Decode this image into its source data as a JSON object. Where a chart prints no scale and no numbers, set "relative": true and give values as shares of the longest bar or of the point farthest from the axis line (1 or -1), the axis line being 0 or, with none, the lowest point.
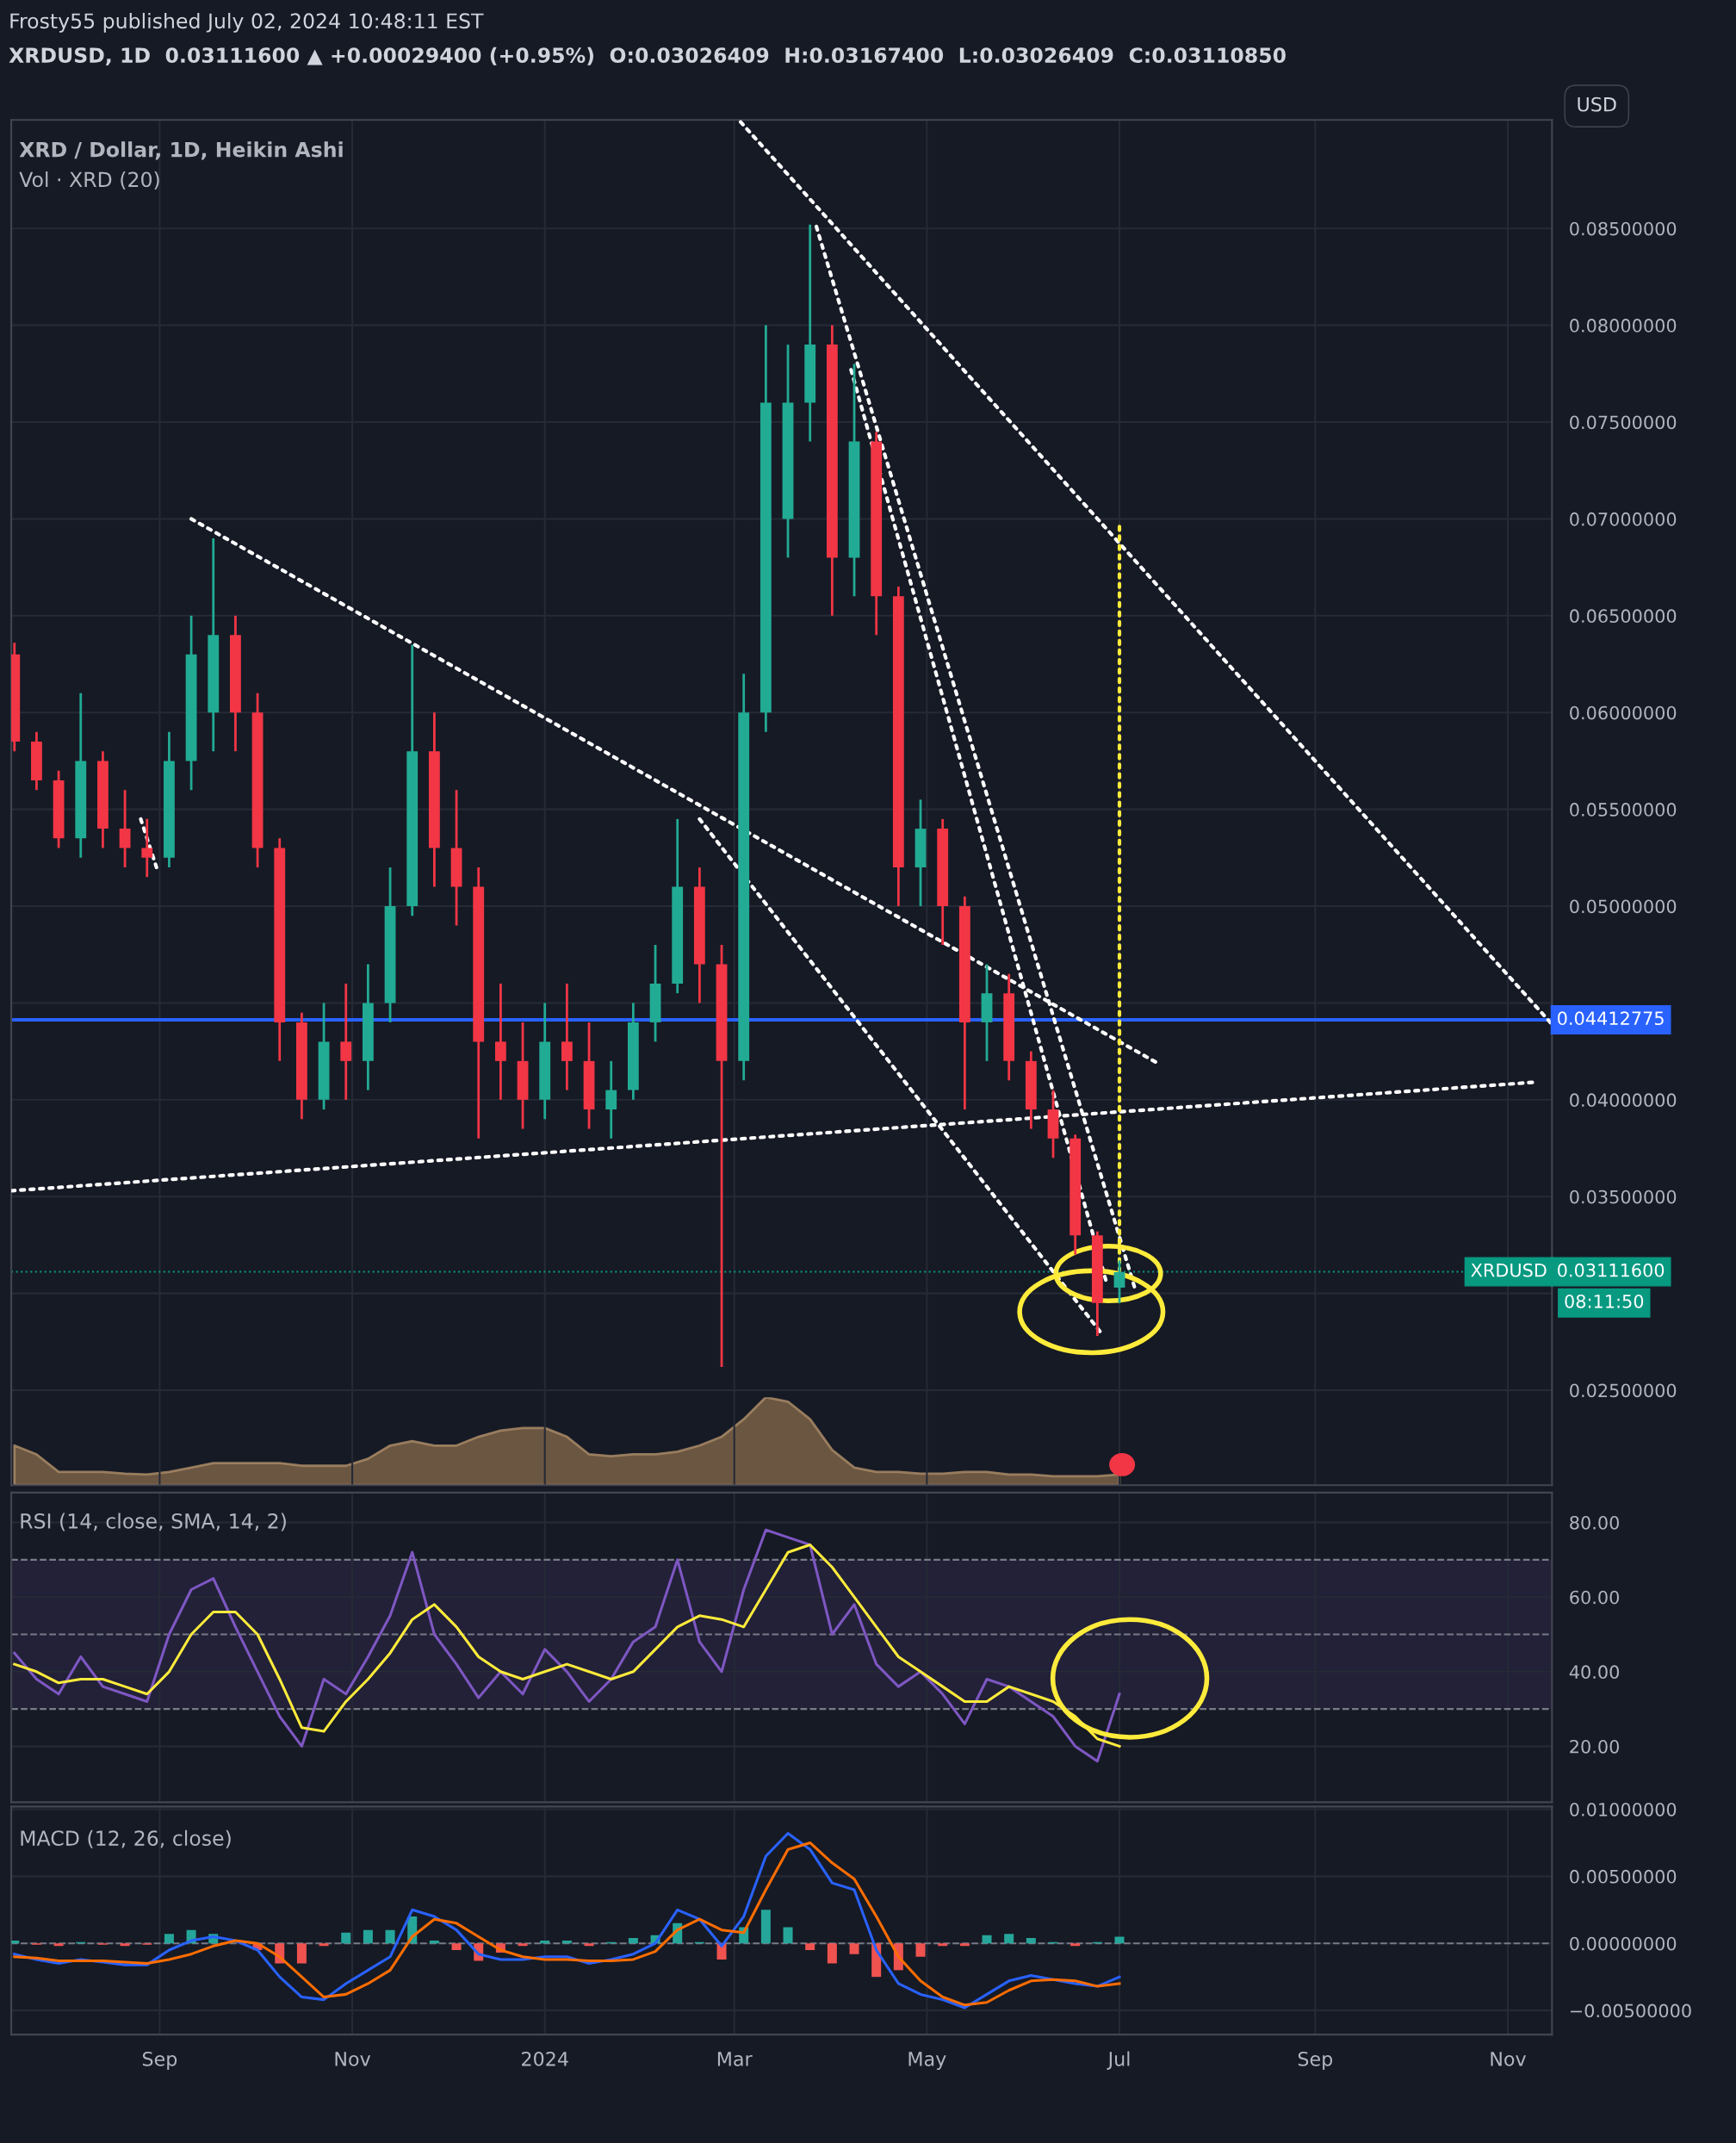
{
  "chart_data": [
    {
      "type": "candlestick",
      "title": "XRD / Dollar, 1D, Heikin Ashi",
      "annotations": [
        "Frosty55 published July 02, 2024 10:48:11 EST",
        "XRDUSD, 1D  0.03111600 ▲ +0.00029400 (+0.95%)  O:0.03026409  H:0.03167400  L:0.03026409  C:0.03110850",
        "USD",
        "XRDUSD",
        "08:11:50"
      ],
      "x": [
        "2023-07-17",
        "2023-07-24",
        "2023-07-31",
        "2023-08-07",
        "2023-08-14",
        "2023-08-21",
        "2023-08-28",
        "2023-09-04",
        "2023-09-11",
        "2023-09-18",
        "2023-09-25",
        "2023-10-02",
        "2023-10-09",
        "2023-10-16",
        "2023-10-23",
        "2023-10-30",
        "2023-11-06",
        "2023-11-13",
        "2023-11-20",
        "2023-11-27",
        "2023-12-04",
        "2023-12-11",
        "2023-12-18",
        "2023-12-25",
        "2024-01-01",
        "2024-01-08",
        "2024-01-15",
        "2024-01-22",
        "2024-01-29",
        "2024-02-05",
        "2024-02-12",
        "2024-02-19",
        "2024-02-26",
        "2024-03-04",
        "2024-03-11",
        "2024-03-18",
        "2024-03-25",
        "2024-04-01",
        "2024-04-08",
        "2024-04-15",
        "2024-04-22",
        "2024-04-29",
        "2024-05-06",
        "2024-05-13",
        "2024-05-20",
        "2024-05-27",
        "2024-06-03",
        "2024-06-10",
        "2024-06-17",
        "2024-06-24",
        "2024-07-01"
      ],
      "ohlc": [
        [
          0.063,
          0.0636,
          0.058,
          0.0585
        ],
        [
          0.0585,
          0.059,
          0.056,
          0.0565
        ],
        [
          0.0565,
          0.057,
          0.053,
          0.0535
        ],
        [
          0.0535,
          0.061,
          0.0525,
          0.0575
        ],
        [
          0.0575,
          0.058,
          0.053,
          0.054
        ],
        [
          0.054,
          0.056,
          0.052,
          0.053
        ],
        [
          0.053,
          0.0545,
          0.0515,
          0.0525
        ],
        [
          0.0525,
          0.059,
          0.052,
          0.0575
        ],
        [
          0.0575,
          0.065,
          0.056,
          0.063
        ],
        [
          0.06,
          0.069,
          0.058,
          0.064
        ],
        [
          0.064,
          0.065,
          0.058,
          0.06
        ],
        [
          0.06,
          0.061,
          0.052,
          0.053
        ],
        [
          0.053,
          0.0535,
          0.042,
          0.044
        ],
        [
          0.044,
          0.0445,
          0.039,
          0.04
        ],
        [
          0.04,
          0.045,
          0.0395,
          0.043
        ],
        [
          0.043,
          0.046,
          0.04,
          0.042
        ],
        [
          0.042,
          0.047,
          0.0405,
          0.045
        ],
        [
          0.045,
          0.052,
          0.044,
          0.05
        ],
        [
          0.05,
          0.0635,
          0.0495,
          0.058
        ],
        [
          0.058,
          0.06,
          0.051,
          0.053
        ],
        [
          0.053,
          0.056,
          0.049,
          0.051
        ],
        [
          0.051,
          0.052,
          0.038,
          0.043
        ],
        [
          0.043,
          0.046,
          0.04,
          0.042
        ],
        [
          0.042,
          0.044,
          0.0385,
          0.04
        ],
        [
          0.04,
          0.045,
          0.039,
          0.043
        ],
        [
          0.043,
          0.046,
          0.0405,
          0.042
        ],
        [
          0.042,
          0.044,
          0.0385,
          0.0395
        ],
        [
          0.0395,
          0.042,
          0.038,
          0.0405
        ],
        [
          0.0405,
          0.045,
          0.04,
          0.044
        ],
        [
          0.044,
          0.048,
          0.043,
          0.046
        ],
        [
          0.046,
          0.0545,
          0.0455,
          0.051
        ],
        [
          0.051,
          0.052,
          0.045,
          0.047
        ],
        [
          0.047,
          0.048,
          0.0262,
          0.042
        ],
        [
          0.042,
          0.062,
          0.041,
          0.06
        ],
        [
          0.06,
          0.08,
          0.059,
          0.076
        ],
        [
          0.07,
          0.079,
          0.068,
          0.076
        ],
        [
          0.076,
          0.0852,
          0.074,
          0.079
        ],
        [
          0.079,
          0.08,
          0.065,
          0.068
        ],
        [
          0.068,
          0.078,
          0.066,
          0.074
        ],
        [
          0.074,
          0.0745,
          0.064,
          0.066
        ],
        [
          0.066,
          0.0665,
          0.05,
          0.052
        ],
        [
          0.052,
          0.0555,
          0.05,
          0.054
        ],
        [
          0.054,
          0.0545,
          0.048,
          0.05
        ],
        [
          0.05,
          0.0505,
          0.0395,
          0.044
        ],
        [
          0.044,
          0.047,
          0.042,
          0.0455
        ],
        [
          0.0455,
          0.0465,
          0.041,
          0.042
        ],
        [
          0.042,
          0.0425,
          0.0385,
          0.0395
        ],
        [
          0.0395,
          0.0405,
          0.037,
          0.038
        ],
        [
          0.038,
          0.0382,
          0.032,
          0.033
        ],
        [
          0.033,
          0.0332,
          0.0278,
          0.0295
        ],
        [
          0.0303,
          0.0317,
          0.0295,
          0.0311
        ]
      ],
      "colors": [
        "#f23645",
        "#f23645",
        "#f23645",
        "#22ab94",
        "#f23645",
        "#f23645",
        "#f23645",
        "#22ab94",
        "#22ab94",
        "#22ab94",
        "#f23645",
        "#f23645",
        "#f23645",
        "#f23645",
        "#22ab94",
        "#f23645",
        "#22ab94",
        "#22ab94",
        "#22ab94",
        "#f23645",
        "#f23645",
        "#f23645",
        "#f23645",
        "#f23645",
        "#22ab94",
        "#f23645",
        "#f23645",
        "#22ab94",
        "#22ab94",
        "#22ab94",
        "#22ab94",
        "#f23645",
        "#f23645",
        "#22ab94",
        "#22ab94",
        "#22ab94",
        "#22ab94",
        "#f23645",
        "#22ab94",
        "#f23645",
        "#f23645",
        "#22ab94",
        "#f23645",
        "#f23645",
        "#22ab94",
        "#f23645",
        "#f23645",
        "#f23645",
        "#f23645",
        "#f23645",
        "#22ab94"
      ],
      "series": [
        {
          "type": "line",
          "x": [
            "2023-09-11",
            "2024-07-13"
          ],
          "values": [
            0.07,
            0.0419
          ],
          "color": "#ffffff",
          "line_style": "dotted"
        },
        {
          "type": "line",
          "x": [
            "2023-07-16",
            "2024-11-09"
          ],
          "values": [
            0.0353,
            0.0409
          ],
          "color": "#ffffff",
          "line_style": "dotted"
        },
        {
          "type": "line",
          "x": [
            "2024-03-03",
            "2024-11-15"
          ],
          "values": [
            0.0905,
            0.0439
          ],
          "color": "#ffffff",
          "line_style": "dotted"
        },
        {
          "type": "line",
          "x": [
            "2024-02-19",
            "2024-06-25"
          ],
          "values": [
            0.0545,
            0.028
          ],
          "color": "#ffffff",
          "line_style": "dotted"
        },
        {
          "type": "line",
          "x": [
            "2024-03-27",
            "2024-07-06"
          ],
          "values": [
            0.0851,
            0.0302
          ],
          "color": "#ffffff",
          "line_style": "dotted"
        },
        {
          "type": "line",
          "x": [
            "2024-04-07",
            "2024-06-27"
          ],
          "values": [
            0.0777,
            0.0305
          ],
          "color": "#ffffff",
          "line_style": "dotted"
        },
        {
          "type": "line",
          "x": [
            "2023-08-26",
            "2023-08-31"
          ],
          "values": [
            0.0545,
            0.052
          ],
          "color": "#ffffff",
          "line_style": "dotted"
        },
        {
          "type": "line",
          "x": [
            "2024-07-01",
            "2024-07-01"
          ],
          "values": [
            0.0696,
            0.0312
          ],
          "color": "#ffeb3b",
          "line_style": "dotted"
        }
      ],
      "ref_lines": [
        {
          "axis": "y",
          "value": 0.04412775,
          "label": "0.04412775",
          "color": "#2962ff",
          "line_style": "solid"
        },
        {
          "axis": "y",
          "value": 0.031116,
          "label": "0.03111600",
          "color": "#089981",
          "line_style": "dotted"
        }
      ],
      "xlim": [
        "2023-07-16",
        "2024-11-15"
      ],
      "ylim": [
        0.0201,
        0.0906
      ],
      "xticks": [
        {
          "value": "2023-09-01",
          "label": null
        },
        {
          "value": "2023-11-01",
          "label": null
        },
        {
          "value": "2024-01-01",
          "label": null
        },
        {
          "value": "2024-03-01",
          "label": null
        },
        {
          "value": "2024-05-01",
          "label": null
        },
        {
          "value": "2024-07-01",
          "label": null
        },
        {
          "value": "2024-09-01",
          "label": null
        },
        {
          "value": "2024-11-01",
          "label": null
        }
      ],
      "yticks": [
        {
          "value": 0.025,
          "label": "0.02500000"
        },
        {
          "value": 0.03,
          "label": null
        },
        {
          "value": 0.035,
          "label": "0.03500000"
        },
        {
          "value": 0.04,
          "label": "0.04000000"
        },
        {
          "value": 0.045,
          "label": null
        },
        {
          "value": 0.05,
          "label": "0.05000000"
        },
        {
          "value": 0.055,
          "label": "0.05500000"
        },
        {
          "value": 0.06,
          "label": "0.06000000"
        },
        {
          "value": 0.065,
          "label": "0.06500000"
        },
        {
          "value": 0.07,
          "label": "0.07000000"
        },
        {
          "value": 0.075,
          "label": "0.07500000"
        },
        {
          "value": 0.08,
          "label": "0.08000000"
        },
        {
          "value": 0.085,
          "label": "0.08500000"
        }
      ],
      "grid": true,
      "tick_labels": "y"
    },
    {
      "type": "area",
      "title": "Vol · XRD (20)",
      "relative": true,
      "tick_labels": false,
      "x": [
        "2023-07-17",
        "2023-07-24",
        "2023-07-31",
        "2023-08-07",
        "2023-08-14",
        "2023-08-21",
        "2023-08-28",
        "2023-09-04",
        "2023-09-11",
        "2023-09-18",
        "2023-09-25",
        "2023-10-02",
        "2023-10-09",
        "2023-10-16",
        "2023-10-23",
        "2023-10-30",
        "2023-11-06",
        "2023-11-13",
        "2023-11-20",
        "2023-11-27",
        "2023-12-04",
        "2023-12-11",
        "2023-12-18",
        "2023-12-25",
        "2024-01-01",
        "2024-01-08",
        "2024-01-15",
        "2024-01-22",
        "2024-01-29",
        "2024-02-05",
        "2024-02-12",
        "2024-02-19",
        "2024-02-26",
        "2024-03-04",
        "2024-03-11",
        "2024-03-18",
        "2024-03-25",
        "2024-04-01",
        "2024-04-08",
        "2024-04-15",
        "2024-04-22",
        "2024-04-29",
        "2024-05-06",
        "2024-05-13",
        "2024-05-20",
        "2024-05-27",
        "2024-06-03",
        "2024-06-10",
        "2024-06-17",
        "2024-06-24",
        "2024-07-01"
      ],
      "series": [
        {
          "color": "#7a6248",
          "values": [
            0.45,
            0.35,
            0.15,
            0.15,
            0.15,
            0.13,
            0.12,
            0.15,
            0.2,
            0.25,
            0.25,
            0.25,
            0.25,
            0.22,
            0.22,
            0.22,
            0.3,
            0.45,
            0.5,
            0.45,
            0.45,
            0.55,
            0.62,
            0.65,
            0.65,
            0.55,
            0.35,
            0.33,
            0.35,
            0.35,
            0.38,
            0.45,
            0.55,
            0.75,
            1.0,
            0.95,
            0.75,
            0.4,
            0.2,
            0.15,
            0.15,
            0.13,
            0.13,
            0.15,
            0.15,
            0.12,
            0.12,
            0.1,
            0.1,
            0.1,
            0.12
          ]
        }
      ],
      "xlim": [
        "2023-07-16",
        "2024-11-15"
      ]
    },
    {
      "type": "line",
      "title": "RSI (14, close, SMA, 14, 2)",
      "x": [
        "2023-07-17",
        "2023-07-24",
        "2023-07-31",
        "2023-08-07",
        "2023-08-14",
        "2023-08-21",
        "2023-08-28",
        "2023-09-04",
        "2023-09-11",
        "2023-09-18",
        "2023-09-25",
        "2023-10-02",
        "2023-10-09",
        "2023-10-16",
        "2023-10-23",
        "2023-10-30",
        "2023-11-06",
        "2023-11-13",
        "2023-11-20",
        "2023-11-27",
        "2023-12-04",
        "2023-12-11",
        "2023-12-18",
        "2023-12-25",
        "2024-01-01",
        "2024-01-08",
        "2024-01-15",
        "2024-01-22",
        "2024-01-29",
        "2024-02-05",
        "2024-02-12",
        "2024-02-19",
        "2024-02-26",
        "2024-03-04",
        "2024-03-11",
        "2024-03-18",
        "2024-03-25",
        "2024-04-01",
        "2024-04-08",
        "2024-04-15",
        "2024-04-22",
        "2024-04-29",
        "2024-05-06",
        "2024-05-13",
        "2024-05-20",
        "2024-05-27",
        "2024-06-03",
        "2024-06-10",
        "2024-06-17",
        "2024-06-24",
        "2024-07-01"
      ],
      "series": [
        {
          "color": "#7e57c2",
          "values": [
            45,
            38,
            34,
            44,
            36,
            34,
            32,
            50,
            62,
            65,
            52,
            40,
            28,
            20,
            38,
            34,
            44,
            55,
            72,
            50,
            42,
            33,
            40,
            34,
            46,
            40,
            32,
            38,
            48,
            52,
            70,
            48,
            40,
            62,
            78,
            76,
            74,
            50,
            58,
            42,
            36,
            40,
            34,
            26,
            38,
            36,
            32,
            28,
            20,
            16,
            34
          ]
        },
        {
          "color": "#ffeb3b",
          "values": [
            42,
            40,
            37,
            38,
            38,
            36,
            34,
            40,
            50,
            56,
            56,
            50,
            38,
            25,
            24,
            32,
            38,
            45,
            54,
            58,
            52,
            44,
            40,
            38,
            40,
            42,
            40,
            38,
            40,
            46,
            52,
            55,
            54,
            52,
            62,
            72,
            74,
            68,
            60,
            52,
            44,
            40,
            36,
            32,
            32,
            36,
            34,
            32,
            28,
            22,
            20
          ]
        }
      ],
      "ref_lines": [
        {
          "axis": "y",
          "value": 70,
          "color": "#787b86",
          "line_style": "dashed"
        },
        {
          "axis": "y",
          "value": 50,
          "color": "#787b86",
          "line_style": "dashed"
        },
        {
          "axis": "y",
          "value": 30,
          "color": "#787b86",
          "line_style": "dashed"
        }
      ],
      "bands": [
        {
          "axis": "y",
          "from": 30,
          "to": 70,
          "color": "#7e57c2"
        }
      ],
      "xlim": [
        "2023-07-16",
        "2024-11-15"
      ],
      "ylim": [
        5,
        88
      ],
      "xticks": [
        {
          "value": "2023-09-01",
          "label": null
        },
        {
          "value": "2023-11-01",
          "label": null
        },
        {
          "value": "2024-01-01",
          "label": null
        },
        {
          "value": "2024-03-01",
          "label": null
        },
        {
          "value": "2024-05-01",
          "label": null
        },
        {
          "value": "2024-07-01",
          "label": null
        },
        {
          "value": "2024-09-01",
          "label": null
        },
        {
          "value": "2024-11-01",
          "label": null
        }
      ],
      "yticks": [
        {
          "value": 20,
          "label": "20.00"
        },
        {
          "value": 40,
          "label": "40.00"
        },
        {
          "value": 60,
          "label": "60.00"
        },
        {
          "value": 80,
          "label": "80.00"
        }
      ],
      "grid": true,
      "tick_labels": "y"
    },
    {
      "type": "line",
      "title": "MACD (12, 26, close)",
      "x": [
        "2023-07-17",
        "2023-07-24",
        "2023-07-31",
        "2023-08-07",
        "2023-08-14",
        "2023-08-21",
        "2023-08-28",
        "2023-09-04",
        "2023-09-11",
        "2023-09-18",
        "2023-09-25",
        "2023-10-02",
        "2023-10-09",
        "2023-10-16",
        "2023-10-23",
        "2023-10-30",
        "2023-11-06",
        "2023-11-13",
        "2023-11-20",
        "2023-11-27",
        "2023-12-04",
        "2023-12-11",
        "2023-12-18",
        "2023-12-25",
        "2024-01-01",
        "2024-01-08",
        "2024-01-15",
        "2024-01-22",
        "2024-01-29",
        "2024-02-05",
        "2024-02-12",
        "2024-02-19",
        "2024-02-26",
        "2024-03-04",
        "2024-03-11",
        "2024-03-18",
        "2024-03-25",
        "2024-04-01",
        "2024-04-08",
        "2024-04-15",
        "2024-04-22",
        "2024-04-29",
        "2024-05-06",
        "2024-05-13",
        "2024-05-20",
        "2024-05-27",
        "2024-06-03",
        "2024-06-10",
        "2024-06-17",
        "2024-06-24",
        "2024-07-01"
      ],
      "series": [
        {
          "type": "bar",
          "values": [
            0.0002,
            -0.0001,
            -0.0002,
            0.0001,
            -0.0001,
            -0.0002,
            -0.0001,
            0.0007,
            0.001,
            0.0007,
            null,
            -0.0005,
            -0.0015,
            -0.0015,
            -0.0002,
            0.0008,
            0.001,
            0.001,
            0.002,
            0.0002,
            -0.0005,
            -0.0013,
            -0.0007,
            -0.0002,
            0.0002,
            0.0002,
            -0.0002,
            0.0001,
            0.0004,
            0.0006,
            0.0015,
            0.0001,
            -0.0012,
            0.0012,
            0.0025,
            0.0012,
            -0.0005,
            -0.0015,
            -0.0008,
            -0.0025,
            -0.002,
            -0.001,
            -0.0002,
            -0.0002,
            0.0006,
            0.0007,
            0.0004,
            0.0001,
            -0.0002,
            0.0001,
            0.0005
          ],
          "colors": [
            "#26a69a",
            "#ef5350",
            "#ef5350",
            "#26a69a",
            "#ef5350",
            "#ef5350",
            "#ef5350",
            "#26a69a",
            "#26a69a",
            "#26a69a",
            "#26a69a",
            "#ef5350",
            "#ef5350",
            "#ef5350",
            "#ef5350",
            "#26a69a",
            "#26a69a",
            "#26a69a",
            "#26a69a",
            "#26a69a",
            "#ef5350",
            "#ef5350",
            "#ef5350",
            "#ef5350",
            "#26a69a",
            "#26a69a",
            "#ef5350",
            "#26a69a",
            "#26a69a",
            "#26a69a",
            "#26a69a",
            "#26a69a",
            "#ef5350",
            "#26a69a",
            "#26a69a",
            "#26a69a",
            "#ef5350",
            "#ef5350",
            "#ef5350",
            "#ef5350",
            "#ef5350",
            "#ef5350",
            "#ef5350",
            "#ef5350",
            "#26a69a",
            "#26a69a",
            "#26a69a",
            "#26a69a",
            "#ef5350",
            "#26a69a",
            "#26a69a"
          ]
        },
        {
          "color": "#2962ff",
          "values": [
            -0.0008,
            -0.0012,
            -0.0015,
            -0.0012,
            -0.0014,
            -0.0016,
            -0.0016,
            -0.0005,
            0.0002,
            0.0005,
            0.0002,
            -0.0005,
            -0.0025,
            -0.004,
            -0.0042,
            -0.003,
            -0.002,
            -0.001,
            0.0025,
            0.002,
            0.001,
            -0.0008,
            -0.0012,
            -0.0012,
            -0.001,
            -0.001,
            -0.0015,
            -0.0012,
            -0.0008,
            0.0,
            0.0025,
            0.0018,
            -0.0002,
            0.002,
            0.0065,
            0.0082,
            0.007,
            0.0045,
            0.004,
            -0.0005,
            -0.003,
            -0.0038,
            -0.0042,
            -0.0048,
            -0.0038,
            -0.0028,
            -0.0024,
            -0.0027,
            -0.003,
            -0.0032,
            -0.0025
          ]
        },
        {
          "color": "#ff6d00",
          "values": [
            -0.001,
            -0.0011,
            -0.0013,
            -0.0013,
            -0.0013,
            -0.0014,
            -0.0015,
            -0.0012,
            -0.0008,
            -0.0002,
            0.0002,
            0.0,
            -0.001,
            -0.0025,
            -0.004,
            -0.0038,
            -0.003,
            -0.002,
            0.0005,
            0.0018,
            0.0015,
            0.0005,
            -0.0005,
            -0.001,
            -0.0012,
            -0.0012,
            -0.0013,
            -0.0013,
            -0.0012,
            -0.0006,
            0.001,
            0.0018,
            0.001,
            0.0008,
            0.004,
            0.007,
            0.0075,
            0.006,
            0.0048,
            0.002,
            -0.001,
            -0.0028,
            -0.004,
            -0.0046,
            -0.0044,
            -0.0035,
            -0.0028,
            -0.0027,
            -0.0028,
            -0.0032,
            -0.003
          ]
        }
      ],
      "ref_lines": [
        {
          "axis": "y",
          "value": 0,
          "color": "#787b86",
          "line_style": "dashed"
        }
      ],
      "xlim": [
        "2023-07-16",
        "2024-11-15"
      ],
      "ylim": [
        -0.0068,
        0.0102
      ],
      "xticks": [
        {
          "value": "2023-09-01",
          "label": "Sep"
        },
        {
          "value": "2023-11-01",
          "label": "Nov"
        },
        {
          "value": "2024-01-01",
          "label": "2024"
        },
        {
          "value": "2024-03-01",
          "label": "Mar"
        },
        {
          "value": "2024-05-01",
          "label": "May"
        },
        {
          "value": "2024-07-01",
          "label": "Jul"
        },
        {
          "value": "2024-09-01",
          "label": "Sep"
        },
        {
          "value": "2024-11-01",
          "label": "Nov"
        }
      ],
      "yticks": [
        {
          "value": -0.005,
          "label": "−0.00500000"
        },
        {
          "value": 0,
          "label": "0.00000000"
        },
        {
          "value": 0.005,
          "label": "0.00500000"
        },
        {
          "value": 0.01,
          "label": "0.01000000"
        }
      ],
      "grid": true
    }
  ]
}
